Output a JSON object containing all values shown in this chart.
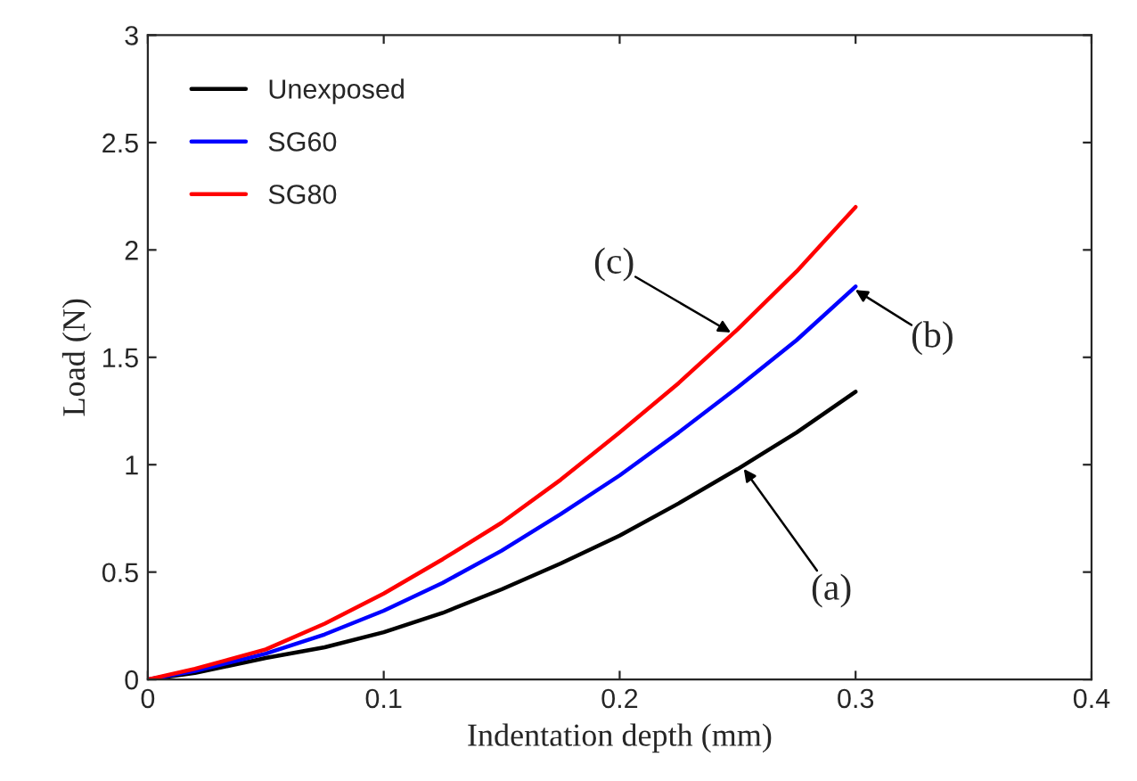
{
  "chart_data": {
    "type": "line",
    "xlabel": "Indentation depth (mm)",
    "ylabel": "Load (N)",
    "x": [
      0,
      0.02,
      0.05,
      0.075,
      0.1,
      0.125,
      0.15,
      0.175,
      0.2,
      0.225,
      0.25,
      0.275,
      0.3
    ],
    "series": [
      {
        "name": "Unexposed",
        "color": "#000000",
        "values": [
          0,
          0.03,
          0.1,
          0.15,
          0.22,
          0.31,
          0.42,
          0.54,
          0.67,
          0.82,
          0.98,
          1.15,
          1.34
        ]
      },
      {
        "name": "SG60",
        "color": "#0000ff",
        "values": [
          0,
          0.04,
          0.12,
          0.21,
          0.32,
          0.45,
          0.6,
          0.77,
          0.95,
          1.15,
          1.36,
          1.58,
          1.83
        ]
      },
      {
        "name": "SG80",
        "color": "#ff0000",
        "values": [
          0,
          0.05,
          0.14,
          0.26,
          0.4,
          0.56,
          0.73,
          0.93,
          1.15,
          1.38,
          1.63,
          1.9,
          2.2
        ]
      }
    ],
    "xlim": [
      0,
      0.4
    ],
    "xticks": [
      0,
      0.1,
      0.2,
      0.3,
      0.4
    ],
    "ylim": [
      0,
      3
    ],
    "yticks": [
      0,
      0.5,
      1,
      1.5,
      2,
      2.5,
      3
    ],
    "grid": false,
    "legend": "top left",
    "annotations": [
      {
        "text": "(c)",
        "x": 0.248,
        "y": 1.61
      },
      {
        "text": "(b)",
        "x": 0.299,
        "y": 1.82
      },
      {
        "text": "(a)",
        "x": 0.252,
        "y": 0.99
      }
    ]
  }
}
